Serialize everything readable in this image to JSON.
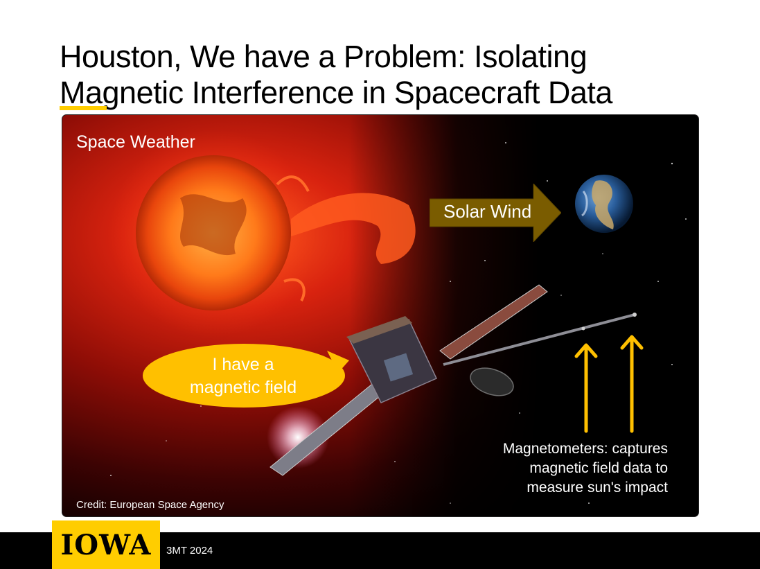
{
  "slide": {
    "title_line1": "Houston, We have a Problem: Isolating",
    "title_line2": "Magnetic Interference in Spacecraft Data",
    "accent_color": "#FFCD00"
  },
  "figure": {
    "space_weather_label": "Space Weather",
    "solar_wind_label": "Solar Wind",
    "bubble_line1": "I have a",
    "bubble_line2": "magnetic field",
    "magnetometers_line1": "Magnetometers:  captures",
    "magnetometers_line2": "magnetic field data to",
    "magnetometers_line3": "measure sun's impact",
    "credit": "Credit: European Space Agency",
    "arrow_color": "#7A5C00",
    "bubble_color": "#FFC000",
    "pointer_color": "#FFC000"
  },
  "footer": {
    "logo": "IOWA",
    "event": "3MT 2024"
  }
}
